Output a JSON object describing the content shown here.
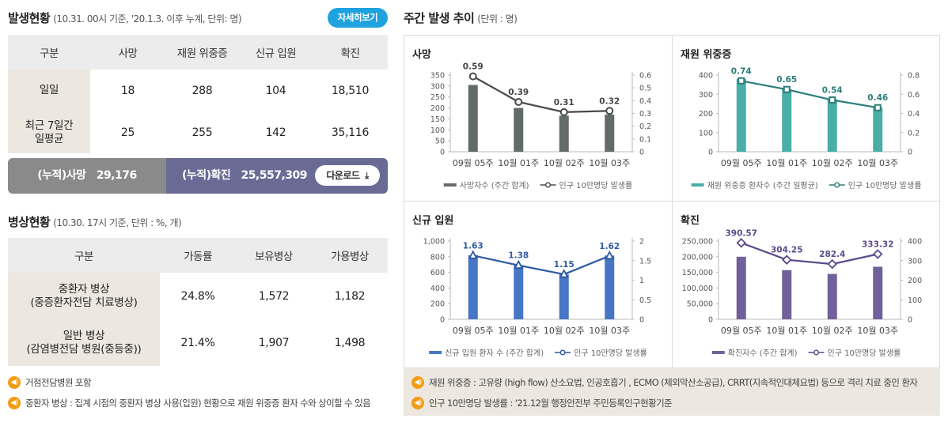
{
  "occurrence": {
    "title": "발생현황",
    "subtitle": "(10.31. 00시 기준, '20.1.3. 이후 누계, 단위: 명)",
    "more_label": "자세히보기",
    "headers": [
      "구분",
      "사망",
      "재원 위중증",
      "신규 입원",
      "확진"
    ],
    "rows": [
      {
        "label": "일일",
        "values": [
          "18",
          "288",
          "104",
          "18,510"
        ]
      },
      {
        "label": "최근 7일간\n일평균",
        "values": [
          "25",
          "255",
          "142",
          "35,116"
        ]
      }
    ],
    "cumulative_death_label": "(누적)사망",
    "cumulative_death_value": "29,176",
    "cumulative_confirmed_label": "(누적)확진",
    "cumulative_confirmed_value": "25,557,309",
    "download_label": "다운로드"
  },
  "beds": {
    "title": "병상현황",
    "subtitle": "(10.30. 17시 기준, 단위 : %, 개)",
    "headers": [
      "구분",
      "가동률",
      "보유병상",
      "가용병상"
    ],
    "rows": [
      {
        "label": "중환자 병상\n(중증환자전담 치료병상)",
        "values": [
          "24.8%",
          "1,572",
          "1,182"
        ]
      },
      {
        "label": "일반 병상\n(감염병전담 병원(중등중))",
        "values": [
          "21.4%",
          "1,907",
          "1,498"
        ]
      }
    ],
    "notes": [
      "거점전담병원 포함",
      "중환자 병상 : 집계 시점의 중환자 병상 사용(입원) 현황으로 재원 위중증 환자 수와 상이할 수 있음"
    ]
  },
  "weekly": {
    "title": "주간 발생 추이",
    "subtitle": "(단위 : 명)",
    "notes": [
      "재원 위중증 : 고유량 (high flow) 산소요법, 인공호흡기 , ECMO (체외막산소공급), CRRT(지속적인대체요법) 등으로 격리 치료 중인 환자",
      "인구 10만명당 발생률 : '21.12월 행정안전부 주민등록인구현황기준"
    ]
  },
  "chart_data": [
    {
      "type": "bar",
      "title": "사망",
      "categories": [
        "09월 05주",
        "10월 01주",
        "10월 02주",
        "10월 03주"
      ],
      "series": [
        {
          "name": "사망자수 (주간 합계)",
          "kind": "bar",
          "values": [
            305,
            200,
            165,
            170
          ],
          "axis": "left"
        },
        {
          "name": "인구 10만명당 발생률",
          "kind": "line",
          "values": [
            0.59,
            0.39,
            0.31,
            0.32
          ],
          "axis": "right"
        }
      ],
      "value_labels": [
        "0.59",
        "0.39",
        "0.31",
        "0.32"
      ],
      "y_left": {
        "ticks": [
          "0",
          "50",
          "100",
          "150",
          "200",
          "250",
          "300",
          "350"
        ],
        "min": 0,
        "max": 350
      },
      "y_right": {
        "ticks": [
          "0",
          "0.1",
          "0.2",
          "0.3",
          "0.4",
          "0.5",
          "0.6"
        ],
        "min": 0,
        "max": 0.6
      },
      "colors": {
        "bar": "#636b6a",
        "line": "#4a4a4a",
        "marker_fill": "#ffffff",
        "marker_shape": "circle"
      }
    },
    {
      "type": "bar",
      "title": "재원 위중증",
      "categories": [
        "09월 05주",
        "10월 01주",
        "10월 02주",
        "10월 03주"
      ],
      "series": [
        {
          "name": "재원 위중증 환자수 (주간 일평균)",
          "kind": "bar",
          "values": [
            380,
            325,
            275,
            230
          ],
          "axis": "left"
        },
        {
          "name": "인구 10만명당 발생률",
          "kind": "line",
          "values": [
            0.74,
            0.65,
            0.54,
            0.46
          ],
          "axis": "right"
        }
      ],
      "value_labels": [
        "0.74",
        "0.65",
        "0.54",
        "0.46"
      ],
      "y_left": {
        "ticks": [
          "0",
          "100",
          "200",
          "300",
          "400"
        ],
        "min": 0,
        "max": 400
      },
      "y_right": {
        "ticks": [
          "0",
          "0.2",
          "0.4",
          "0.6",
          "0.8"
        ],
        "min": 0,
        "max": 0.8
      },
      "colors": {
        "bar": "#4aaea8",
        "line": "#2c7e7a",
        "marker_fill": "#ffffff",
        "marker_shape": "square"
      }
    },
    {
      "type": "bar",
      "title": "신규 입원",
      "categories": [
        "09월 05주",
        "10월 01주",
        "10월 02주",
        "10월 03주"
      ],
      "series": [
        {
          "name": "신규 입원 환자 수 (주간 합계)",
          "kind": "bar",
          "values": [
            820,
            690,
            575,
            815
          ],
          "axis": "left"
        },
        {
          "name": "인구 10만명당 발생률",
          "kind": "line",
          "values": [
            1.63,
            1.38,
            1.15,
            1.62
          ],
          "axis": "right"
        }
      ],
      "value_labels": [
        "1.63",
        "1.38",
        "1.15",
        "1.62"
      ],
      "y_left": {
        "ticks": [
          "0",
          "200",
          "400",
          "600",
          "800",
          "1,000"
        ],
        "min": 0,
        "max": 1000
      },
      "y_right": {
        "ticks": [
          "0",
          "0.5",
          "1",
          "1.5",
          "2"
        ],
        "min": 0,
        "max": 2
      },
      "colors": {
        "bar": "#4676c5",
        "line": "#2d5aa3",
        "marker_fill": "#ffffff",
        "marker_shape": "triangle"
      }
    },
    {
      "type": "bar",
      "title": "확진",
      "categories": [
        "09월 05주",
        "10월 01주",
        "10월 02주",
        "10월 03주"
      ],
      "series": [
        {
          "name": "확진자수 (주간 합계)",
          "kind": "bar",
          "values": [
            200000,
            157000,
            145000,
            168000
          ],
          "axis": "left"
        },
        {
          "name": "인구 10만명당 발생률",
          "kind": "line",
          "values": [
            390.57,
            304.25,
            282.4,
            333.32
          ],
          "axis": "right"
        }
      ],
      "value_labels": [
        "390.57",
        "304.25",
        "282.4",
        "333.32"
      ],
      "y_left": {
        "ticks": [
          "0",
          "50,000",
          "100,000",
          "150,000",
          "200,000",
          "250,000"
        ],
        "min": 0,
        "max": 250000
      },
      "y_right": {
        "ticks": [
          "0",
          "100",
          "200",
          "300",
          "400"
        ],
        "min": 0,
        "max": 400
      },
      "colors": {
        "bar": "#70619a",
        "line": "#5a4a8c",
        "marker_fill": "#ffffff",
        "marker_shape": "diamond"
      }
    }
  ]
}
